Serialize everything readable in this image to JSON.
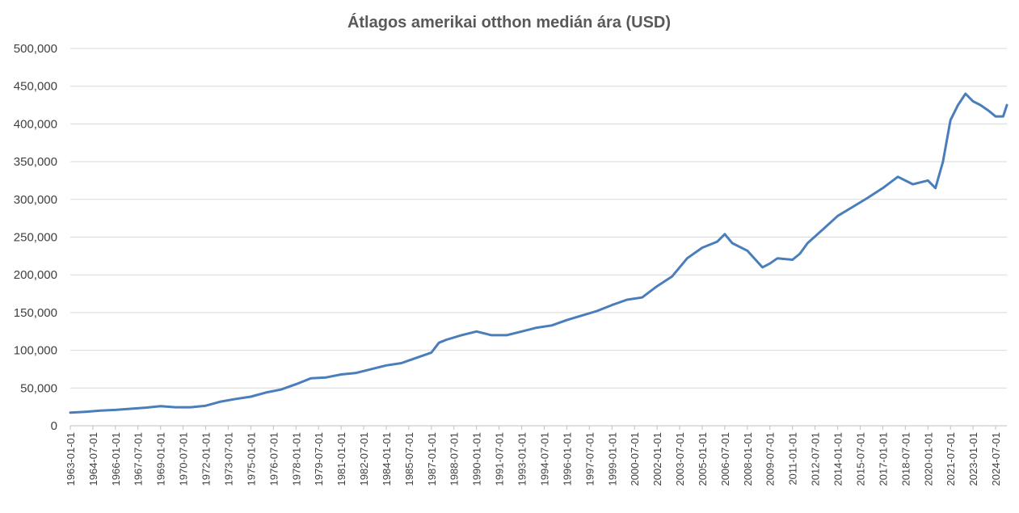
{
  "chart_data": {
    "type": "line",
    "title": "Átlagos amerikai otthon medián ára (USD)",
    "xlabel": "",
    "ylabel": "",
    "ylim": [
      0,
      500000
    ],
    "yticks": [
      0,
      50000,
      100000,
      150000,
      200000,
      250000,
      300000,
      350000,
      400000,
      450000,
      500000
    ],
    "ytick_labels": [
      "0",
      "50,000",
      "100,000",
      "150,000",
      "200,000",
      "250,000",
      "300,000",
      "350,000",
      "400,000",
      "450,000",
      "500,000"
    ],
    "x_range": [
      "1963-01-01",
      "2025-04-01"
    ],
    "x_tick_labels": [
      "1963-01-01",
      "1964-07-01",
      "1966-01-01",
      "1967-07-01",
      "1969-01-01",
      "1970-07-01",
      "1972-01-01",
      "1973-07-01",
      "1975-01-01",
      "1976-07-01",
      "1978-01-01",
      "1979-07-01",
      "1981-01-01",
      "1982-07-01",
      "1984-01-01",
      "1985-07-01",
      "1987-01-01",
      "1988-07-01",
      "1990-01-01",
      "1991-07-01",
      "1993-01-01",
      "1994-07-01",
      "1996-01-01",
      "1997-07-01",
      "1999-01-01",
      "2000-07-01",
      "2002-01-01",
      "2003-07-01",
      "2005-01-01",
      "2006-07-01",
      "2008-01-01",
      "2009-07-01",
      "2011-01-01",
      "2012-07-01",
      "2014-01-01",
      "2015-07-01",
      "2017-01-01",
      "2018-07-01",
      "2020-01-01",
      "2021-07-01",
      "2023-01-01",
      "2024-07-01"
    ],
    "grid": "horizontal",
    "legend": "none",
    "series_color": "#4a7ebb",
    "series": [
      {
        "x": [
          "1963-01-01",
          "1964-01-01",
          "1965-01-01",
          "1966-01-01",
          "1967-01-01",
          "1968-01-01",
          "1969-01-01",
          "1970-01-01",
          "1971-01-01",
          "1972-01-01",
          "1973-01-01",
          "1974-01-01",
          "1975-01-01",
          "1976-01-01",
          "1977-01-01",
          "1978-01-01",
          "1979-01-01",
          "1980-01-01",
          "1981-01-01",
          "1982-01-01",
          "1983-01-01",
          "1984-01-01",
          "1985-01-01",
          "1986-01-01",
          "1987-01-01",
          "1987-07-01",
          "1988-01-01",
          "1989-01-01",
          "1990-01-01",
          "1991-01-01",
          "1992-01-01",
          "1993-01-01",
          "1994-01-01",
          "1995-01-01",
          "1996-01-01",
          "1997-01-01",
          "1998-01-01",
          "1999-01-01",
          "2000-01-01",
          "2001-01-01",
          "2002-01-01",
          "2003-01-01",
          "2004-01-01",
          "2005-01-01",
          "2006-01-01",
          "2006-07-01",
          "2007-01-01",
          "2008-01-01",
          "2009-01-01",
          "2009-07-01",
          "2010-01-01",
          "2011-01-01",
          "2011-07-01",
          "2012-01-01",
          "2013-01-01",
          "2014-01-01",
          "2015-01-01",
          "2016-01-01",
          "2017-01-01",
          "2018-01-01",
          "2019-01-01",
          "2020-01-01",
          "2020-07-01",
          "2021-01-01",
          "2021-07-01",
          "2022-01-01",
          "2022-07-01",
          "2023-01-01",
          "2023-07-01",
          "2024-01-01",
          "2024-07-01",
          "2025-01-01",
          "2025-04-01"
        ],
        "y": [
          17500,
          18500,
          20000,
          21000,
          22500,
          24000,
          26000,
          24500,
          24500,
          26500,
          32000,
          35500,
          38500,
          44000,
          48000,
          55000,
          63000,
          64000,
          68000,
          70000,
          75000,
          80000,
          83000,
          90000,
          97000,
          110000,
          114000,
          120000,
          125000,
          120000,
          120000,
          125000,
          130000,
          133000,
          140000,
          146000,
          152000,
          160000,
          167000,
          170000,
          185000,
          198000,
          222000,
          236000,
          244000,
          254000,
          242000,
          232000,
          210000,
          215000,
          222000,
          220000,
          228000,
          242000,
          260000,
          278000,
          290000,
          302000,
          315000,
          330000,
          320000,
          325000,
          315000,
          350000,
          405000,
          425000,
          440000,
          430000,
          425000,
          418000,
          410000,
          410000,
          425000
        ]
      }
    ]
  }
}
